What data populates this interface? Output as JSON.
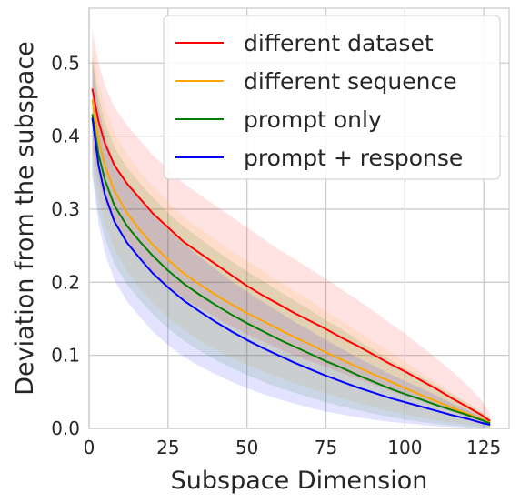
{
  "chart_data": {
    "type": "line",
    "title": "",
    "xlabel": "Subspace Dimension",
    "ylabel": "Deviation from the subspace",
    "xlim": [
      0,
      133
    ],
    "ylim": [
      0,
      0.575
    ],
    "xticks": [
      0,
      25,
      50,
      75,
      100,
      125
    ],
    "yticks": [
      0.0,
      0.1,
      0.2,
      0.3,
      0.4,
      0.5
    ],
    "xtick_labels": [
      "0",
      "25",
      "50",
      "75",
      "100",
      "125"
    ],
    "ytick_labels": [
      "0.0",
      "0.1",
      "0.2",
      "0.3",
      "0.4",
      "0.5"
    ],
    "grid": true,
    "legend_position": "top-right",
    "x": [
      1,
      3,
      5,
      8,
      12,
      16,
      20,
      25,
      30,
      35,
      40,
      45,
      50,
      55,
      60,
      65,
      70,
      75,
      80,
      85,
      90,
      95,
      100,
      105,
      110,
      115,
      120,
      124,
      127
    ],
    "series": [
      {
        "name": "different dataset",
        "color": "#ff0000",
        "values": [
          0.465,
          0.42,
          0.39,
          0.36,
          0.335,
          0.315,
          0.295,
          0.275,
          0.255,
          0.24,
          0.225,
          0.21,
          0.195,
          0.182,
          0.17,
          0.158,
          0.147,
          0.136,
          0.124,
          0.113,
          0.101,
          0.089,
          0.078,
          0.066,
          0.054,
          0.041,
          0.029,
          0.019,
          0.01
        ],
        "lower": [
          0.385,
          0.34,
          0.31,
          0.28,
          0.255,
          0.235,
          0.215,
          0.195,
          0.178,
          0.165,
          0.152,
          0.14,
          0.129,
          0.119,
          0.109,
          0.1,
          0.092,
          0.084,
          0.076,
          0.068,
          0.06,
          0.052,
          0.044,
          0.037,
          0.03,
          0.022,
          0.015,
          0.009,
          0.004
        ],
        "upper": [
          0.545,
          0.5,
          0.47,
          0.44,
          0.415,
          0.395,
          0.375,
          0.355,
          0.335,
          0.32,
          0.305,
          0.29,
          0.275,
          0.26,
          0.245,
          0.232,
          0.218,
          0.205,
          0.19,
          0.176,
          0.161,
          0.145,
          0.13,
          0.113,
          0.096,
          0.078,
          0.058,
          0.04,
          0.02
        ]
      },
      {
        "name": "different sequence",
        "color": "#ffa500",
        "values": [
          0.45,
          0.395,
          0.36,
          0.325,
          0.295,
          0.272,
          0.252,
          0.231,
          0.212,
          0.197,
          0.183,
          0.17,
          0.158,
          0.147,
          0.136,
          0.125,
          0.115,
          0.104,
          0.094,
          0.084,
          0.074,
          0.065,
          0.055,
          0.046,
          0.037,
          0.028,
          0.02,
          0.013,
          0.008
        ],
        "lower": [
          0.37,
          0.315,
          0.28,
          0.245,
          0.215,
          0.192,
          0.172,
          0.152,
          0.135,
          0.12,
          0.108,
          0.097,
          0.087,
          0.078,
          0.07,
          0.062,
          0.055,
          0.048,
          0.041,
          0.035,
          0.029,
          0.024,
          0.019,
          0.015,
          0.011,
          0.008,
          0.005,
          0.003,
          0.001
        ],
        "upper": [
          0.53,
          0.475,
          0.44,
          0.405,
          0.375,
          0.352,
          0.332,
          0.31,
          0.289,
          0.274,
          0.258,
          0.243,
          0.229,
          0.216,
          0.202,
          0.188,
          0.175,
          0.16,
          0.147,
          0.133,
          0.119,
          0.106,
          0.091,
          0.077,
          0.063,
          0.048,
          0.035,
          0.023,
          0.015
        ]
      },
      {
        "name": "prompt only",
        "color": "#008000",
        "values": [
          0.43,
          0.375,
          0.34,
          0.305,
          0.277,
          0.256,
          0.237,
          0.216,
          0.198,
          0.183,
          0.169,
          0.156,
          0.144,
          0.133,
          0.122,
          0.112,
          0.102,
          0.092,
          0.083,
          0.073,
          0.064,
          0.055,
          0.047,
          0.04,
          0.032,
          0.025,
          0.018,
          0.012,
          0.007
        ],
        "lower": [
          0.35,
          0.295,
          0.26,
          0.225,
          0.197,
          0.176,
          0.157,
          0.137,
          0.12,
          0.106,
          0.094,
          0.083,
          0.073,
          0.064,
          0.056,
          0.049,
          0.042,
          0.036,
          0.03,
          0.025,
          0.02,
          0.016,
          0.012,
          0.009,
          0.006,
          0.004,
          0.002,
          0.001,
          0.0
        ],
        "upper": [
          0.51,
          0.455,
          0.42,
          0.385,
          0.357,
          0.336,
          0.317,
          0.295,
          0.276,
          0.26,
          0.244,
          0.229,
          0.215,
          0.202,
          0.188,
          0.175,
          0.162,
          0.148,
          0.136,
          0.121,
          0.108,
          0.094,
          0.082,
          0.071,
          0.058,
          0.046,
          0.034,
          0.023,
          0.014
        ]
      },
      {
        "name": "prompt + response",
        "color": "#0000ff",
        "values": [
          0.425,
          0.36,
          0.32,
          0.283,
          0.254,
          0.233,
          0.213,
          0.193,
          0.175,
          0.16,
          0.146,
          0.133,
          0.121,
          0.11,
          0.1,
          0.09,
          0.081,
          0.072,
          0.064,
          0.056,
          0.049,
          0.042,
          0.036,
          0.03,
          0.024,
          0.018,
          0.013,
          0.008,
          0.005
        ],
        "lower": [
          0.345,
          0.28,
          0.24,
          0.203,
          0.174,
          0.153,
          0.133,
          0.114,
          0.098,
          0.085,
          0.074,
          0.064,
          0.055,
          0.047,
          0.04,
          0.034,
          0.028,
          0.023,
          0.019,
          0.015,
          0.012,
          0.009,
          0.007,
          0.005,
          0.003,
          0.002,
          0.001,
          0.0,
          0.0
        ],
        "upper": [
          0.505,
          0.44,
          0.4,
          0.363,
          0.334,
          0.313,
          0.293,
          0.272,
          0.252,
          0.235,
          0.218,
          0.202,
          0.187,
          0.173,
          0.16,
          0.146,
          0.134,
          0.121,
          0.109,
          0.097,
          0.086,
          0.075,
          0.065,
          0.055,
          0.045,
          0.034,
          0.025,
          0.016,
          0.01
        ]
      }
    ]
  }
}
